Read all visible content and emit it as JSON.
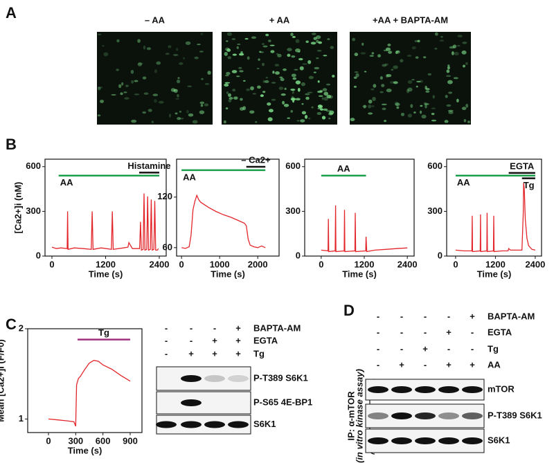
{
  "panel_labels": {
    "a": "A",
    "b": "B",
    "c": "C",
    "d": "D"
  },
  "panel_a": {
    "images": [
      {
        "label": "– AA"
      },
      {
        "label": "+ AA"
      },
      {
        "label": "+AA + BAPTA-AM"
      }
    ]
  },
  "chart_data": [
    {
      "type": "line",
      "y_label": "[Ca2+]i (nM)",
      "x_label": "Time (s)",
      "color": "#e3262b",
      "xlim": [
        -155,
        2555
      ],
      "ylim": [
        0,
        650
      ],
      "xticks": [
        0,
        1200,
        2400
      ],
      "yticks": [
        0,
        300,
        600
      ],
      "x": [
        0,
        100,
        200,
        340,
        350,
        360,
        500,
        700,
        880,
        900,
        920,
        1100,
        1330,
        1350,
        1370,
        1600,
        1700,
        1720,
        1800,
        1960,
        1980,
        2000,
        2040,
        2060,
        2080,
        2120,
        2140,
        2160,
        2200,
        2220,
        2240,
        2280,
        2300,
        2320,
        2360,
        2380
      ],
      "values": [
        60,
        50,
        55,
        50,
        300,
        45,
        55,
        50,
        45,
        300,
        45,
        55,
        45,
        300,
        45,
        55,
        60,
        90,
        50,
        50,
        230,
        40,
        45,
        420,
        40,
        45,
        400,
        40,
        45,
        380,
        40,
        45,
        370,
        40,
        40,
        50
      ],
      "annotations": [
        {
          "label": "AA",
          "start": 150,
          "end": 2400,
          "level": 540,
          "color": "#1a9e4b"
        },
        {
          "label": "Histamine",
          "start": 1950,
          "end": 2400,
          "level": 560,
          "color": "#111111"
        }
      ]
    },
    {
      "type": "line",
      "x_label": "Time (s)",
      "color": "#e3262b",
      "xlim": [
        -130,
        2560
      ],
      "ylim": [
        50,
        165
      ],
      "xticks": [
        0,
        1000,
        2000
      ],
      "yticks": [
        60,
        120
      ],
      "x": [
        0,
        100,
        200,
        250,
        300,
        350,
        400,
        450,
        500,
        700,
        900,
        1100,
        1300,
        1500,
        1650,
        1700,
        1750,
        1800,
        1900,
        2000,
        2100,
        2200
      ],
      "values": [
        60,
        59,
        61,
        75,
        105,
        115,
        122,
        117,
        114,
        108,
        103,
        99,
        96,
        92,
        89,
        86,
        70,
        63,
        61,
        60,
        62,
        60
      ],
      "annotations": [
        {
          "label": "AA",
          "start": 0,
          "end": 2200,
          "level": 152,
          "color": "#1a9e4b"
        },
        {
          "label": "– Ca2+",
          "start": 1700,
          "end": 2200,
          "level": 156,
          "color": "#111111"
        }
      ]
    },
    {
      "type": "line",
      "x_label": "Time (s)",
      "color": "#e3262b",
      "xlim": [
        -460,
        2590
      ],
      "ylim": [
        0,
        650
      ],
      "xticks": [
        0,
        1200,
        2400
      ],
      "yticks": [
        0,
        300,
        600
      ],
      "x": [
        0,
        190,
        200,
        210,
        390,
        400,
        410,
        640,
        650,
        660,
        940,
        950,
        960,
        1240,
        1250,
        1270,
        1500,
        1800,
        2100,
        2400
      ],
      "values": [
        40,
        35,
        250,
        30,
        35,
        340,
        30,
        35,
        310,
        30,
        35,
        290,
        30,
        35,
        130,
        30,
        40,
        45,
        50,
        55
      ],
      "annotations": [
        {
          "label": "AA",
          "start": 0,
          "end": 1250,
          "level": 540,
          "color": "#1a9e4b"
        }
      ]
    },
    {
      "type": "line",
      "x_label": "Time (s)",
      "color": "#e3262b",
      "xlim": [
        -270,
        2590
      ],
      "ylim": [
        0,
        650
      ],
      "xticks": [
        0,
        1200,
        2400
      ],
      "yticks": [
        0,
        300,
        600
      ],
      "x": [
        0,
        250,
        490,
        500,
        510,
        740,
        750,
        760,
        940,
        950,
        960,
        1140,
        1150,
        1160,
        1400,
        1580,
        1600,
        1650,
        1800,
        2000,
        2040,
        2050,
        2070,
        2100,
        2150,
        2200,
        2300,
        2400
      ],
      "values": [
        40,
        35,
        35,
        270,
        30,
        35,
        280,
        30,
        35,
        290,
        30,
        35,
        270,
        30,
        35,
        35,
        50,
        40,
        40,
        40,
        300,
        490,
        450,
        250,
        120,
        70,
        45,
        40
      ],
      "annotations": [
        {
          "label": "AA",
          "start": 0,
          "end": 2400,
          "level": 540,
          "color": "#1a9e4b"
        },
        {
          "label": "EGTA",
          "start": 1600,
          "end": 2400,
          "level": 558,
          "color": "#111111"
        },
        {
          "label": "Tg",
          "start": 2000,
          "end": 2400,
          "level": 522,
          "color": "#111111"
        }
      ]
    },
    {
      "type": "line",
      "y_label": "Mean [Ca2+]i (F/F0)",
      "x_label": "Time (s)",
      "color": "#e3262b",
      "xlim": [
        -229,
        1030
      ],
      "ylim": [
        0.85,
        2.0
      ],
      "xticks": [
        0,
        300,
        600,
        900
      ],
      "yticks": [
        1,
        2
      ],
      "x": [
        0,
        100,
        200,
        280,
        300,
        310,
        330,
        350,
        400,
        450,
        500,
        550,
        600,
        700,
        800,
        900
      ],
      "values": [
        1.0,
        0.99,
        0.98,
        0.97,
        0.92,
        1.38,
        1.45,
        1.47,
        1.55,
        1.62,
        1.65,
        1.64,
        1.6,
        1.55,
        1.48,
        1.42
      ],
      "annotations": [
        {
          "label": "Tg",
          "start": 320,
          "end": 900,
          "level": 1.88,
          "color": "#a0307f"
        }
      ]
    }
  ],
  "panel_c_blot": {
    "conditions": [
      {
        "label": "BAPTA-AM",
        "signs": [
          "-",
          "-",
          "-",
          "+"
        ]
      },
      {
        "label": "EGTA",
        "signs": [
          "-",
          "-",
          "+",
          "+"
        ]
      },
      {
        "label": "Tg",
        "signs": [
          "-",
          "+",
          "+",
          "+"
        ]
      }
    ],
    "blots": [
      {
        "label": "P-T389 S6K1",
        "bands": [
          0,
          1,
          0.2,
          0.15
        ]
      },
      {
        "label": "P-S65 4E-BP1",
        "bands": [
          0,
          1,
          0,
          0
        ]
      },
      {
        "label": "S6K1",
        "bands": [
          1,
          1,
          1,
          1
        ]
      }
    ]
  },
  "panel_d_blot": {
    "ip_label": "IP: α-mTOR",
    "ip_note": "(in vitro kinase assay)",
    "conditions": [
      {
        "label": "BAPTA-AM",
        "signs": [
          "-",
          "-",
          "-",
          "-",
          "+"
        ]
      },
      {
        "label": "EGTA",
        "signs": [
          "-",
          "-",
          "-",
          "+",
          "-"
        ]
      },
      {
        "label": "Tg",
        "signs": [
          "-",
          "-",
          "+",
          "-",
          "-"
        ]
      },
      {
        "label": "AA",
        "signs": [
          "-",
          "+",
          "-",
          "+",
          "+"
        ]
      }
    ],
    "blots": [
      {
        "label": "mTOR",
        "bands": [
          1,
          1,
          1,
          1,
          1
        ]
      },
      {
        "label": "P-T389 S6K1",
        "bands": [
          0.5,
          1,
          0.9,
          0.45,
          0.65
        ]
      },
      {
        "label": "S6K1",
        "bands": [
          1,
          1,
          1,
          1,
          1
        ]
      }
    ]
  }
}
